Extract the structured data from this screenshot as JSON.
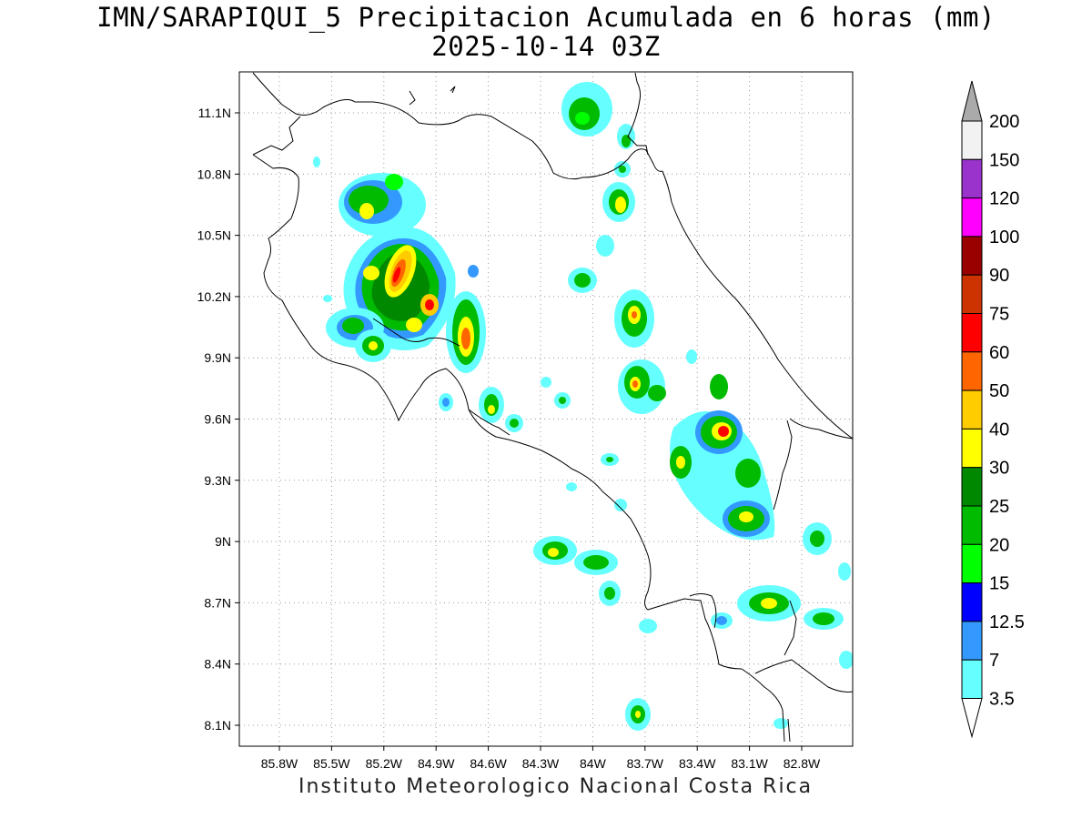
{
  "title": {
    "line1": "IMN/SARAPIQUI_5 Precipitacion Acumulada en 6 horas (mm)",
    "line2": "2025-10-14 03Z"
  },
  "footer": "Instituto Meteorologico Nacional Costa Rica",
  "axes": {
    "lon_labels": [
      "85.8W",
      "85.5W",
      "85.2W",
      "84.9W",
      "84.6W",
      "84.3W",
      "84W",
      "83.7W",
      "83.4W",
      "83.1W",
      "82.8W"
    ],
    "lat_labels": [
      "11.1N",
      "10.8N",
      "10.5N",
      "10.2N",
      "9.9N",
      "9.6N",
      "9.3N",
      "9N",
      "8.7N",
      "8.4N",
      "8.1N"
    ]
  },
  "colorbar": {
    "labels": [
      "200",
      "150",
      "120",
      "100",
      "90",
      "75",
      "60",
      "50",
      "40",
      "30",
      "25",
      "20",
      "15",
      "12.5",
      "7",
      "3.5"
    ],
    "colors": [
      "#f2f2f2",
      "#9933cc",
      "#ff00ff",
      "#990000",
      "#cc3300",
      "#ff0000",
      "#ff6600",
      "#ffcc00",
      "#ffff00",
      "#008800",
      "#00bb00",
      "#00ff00",
      "#0000ff",
      "#3399ff",
      "#66ffff"
    ],
    "cap_top_color": "#aaaaaa",
    "cap_bottom_color": "#ffffff"
  }
}
